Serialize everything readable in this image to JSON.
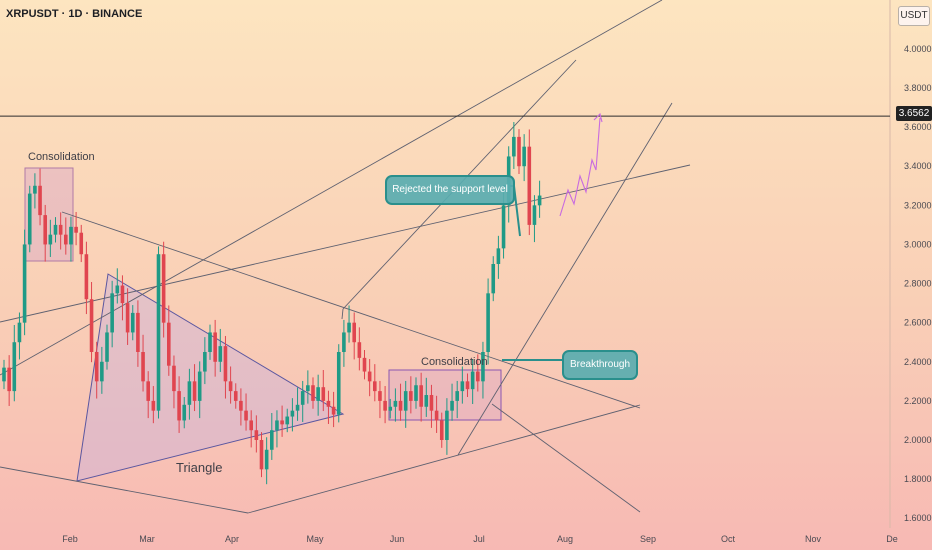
{
  "header": {
    "symbol_title": "XRPUSDT · 1D · BINANCE",
    "currency": "USDT"
  },
  "price_tag": "3.6562",
  "annotations": {
    "consolidation_1": "Consolidation",
    "consolidation_2": "Consolidation",
    "triangle": "Triangle",
    "rejected": "Rejected the support level",
    "breakthrough": "Breakthrough"
  },
  "chart_data": {
    "type": "candlestick",
    "title": "XRPUSDT · 1D · BINANCE",
    "x_tick_labels": [
      "Feb",
      "Mar",
      "Apr",
      "May",
      "Jun",
      "Jul",
      "Aug",
      "Sep",
      "Oct",
      "Nov",
      "De"
    ],
    "y_tick_labels": [
      "1.6000",
      "1.8000",
      "2.0000",
      "2.2000",
      "2.4000",
      "2.6000",
      "2.8000",
      "3.0000",
      "3.2000",
      "3.4000",
      "3.6000",
      "3.8000",
      "4.0000"
    ],
    "ylim": [
      1.55,
      4.25
    ],
    "horizontal_level": 3.6562,
    "colors": {
      "up": "#1f9a86",
      "down": "#e0454f",
      "level_line": "#2c2c2c",
      "trend_line": "#5f6170",
      "pattern_line": "#5b57a0",
      "projection": "#c86be0",
      "callout": "#2a8f8c"
    },
    "candle_closes": [
      2.37,
      2.25,
      2.5,
      2.6,
      3.0,
      3.26,
      3.3,
      3.15,
      3.0,
      3.05,
      3.1,
      3.05,
      3.0,
      3.09,
      3.06,
      2.95,
      2.72,
      2.45,
      2.3,
      2.4,
      2.55,
      2.75,
      2.79,
      2.7,
      2.55,
      2.65,
      2.45,
      2.3,
      2.2,
      2.15,
      2.95,
      2.6,
      2.38,
      2.25,
      2.1,
      2.18,
      2.3,
      2.2,
      2.35,
      2.45,
      2.55,
      2.4,
      2.48,
      2.3,
      2.25,
      2.2,
      2.15,
      2.1,
      2.05,
      2.0,
      1.85,
      1.95,
      2.05,
      2.1,
      2.08,
      2.12,
      2.15,
      2.18,
      2.25,
      2.28,
      2.2,
      2.27,
      2.2,
      2.17,
      2.13,
      2.45,
      2.55,
      2.6,
      2.5,
      2.42,
      2.35,
      2.3,
      2.25,
      2.2,
      2.15,
      2.17,
      2.2,
      2.15,
      2.25,
      2.2,
      2.28,
      2.17,
      2.23,
      2.15,
      2.1,
      2.0,
      2.15,
      2.2,
      2.25,
      2.3,
      2.26,
      2.35,
      2.3,
      2.45,
      2.75,
      2.9,
      2.98,
      3.2,
      3.45,
      3.55,
      3.4,
      3.5,
      3.1,
      3.2,
      3.25
    ],
    "x_positions": "daily, Jan through late Jul",
    "value_axis_side": "right"
  }
}
